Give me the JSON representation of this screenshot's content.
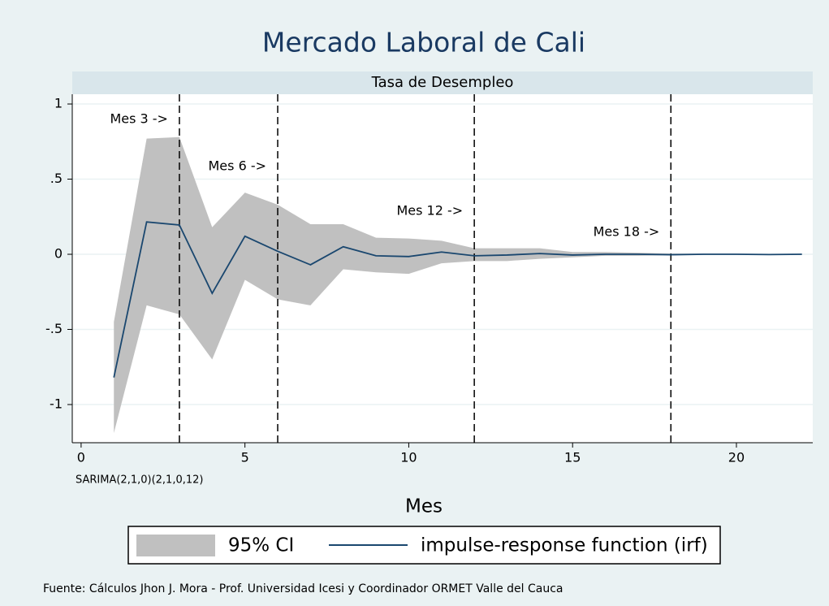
{
  "chart_data": {
    "type": "line",
    "title": "Mercado Laboral de Cali",
    "subtitle": "Tasa de Desempleo",
    "note": "SARIMA(2,1,0)(2,1,0,12)",
    "x_label": "Mes",
    "caption": "Fuente: Cálculos Jhon J. Mora - Prof. Universidad Icesi y Coordinador ORMET Valle del Cauca",
    "x": [
      1,
      2,
      3,
      4,
      5,
      6,
      7,
      8,
      9,
      10,
      11,
      12,
      13,
      14,
      15,
      16,
      17,
      18,
      19,
      20,
      21,
      22
    ],
    "band": {
      "name": "95% CI",
      "color": "#c0c0c0",
      "upper": [
        -0.45,
        0.77,
        0.78,
        0.18,
        0.41,
        0.33,
        0.2,
        0.2,
        0.11,
        0.105,
        0.09,
        0.04,
        0.04,
        0.04,
        0.015,
        0.015,
        0.01,
        0.005,
        0.003,
        0.002,
        0.001,
        0
      ],
      "lower": [
        -1.19,
        -0.34,
        -0.4,
        -0.7,
        -0.17,
        -0.3,
        -0.34,
        -0.1,
        -0.12,
        -0.13,
        -0.06,
        -0.045,
        -0.045,
        -0.03,
        -0.02,
        -0.01,
        -0.01,
        -0.005,
        -0.003,
        -0.002,
        -0.001,
        0
      ]
    },
    "series": [
      {
        "name": "impulse-response function (irf)",
        "color": "#1a476f",
        "values": [
          -0.82,
          0.215,
          0.195,
          -0.26,
          0.12,
          0.02,
          -0.07,
          0.05,
          -0.01,
          -0.015,
          0.015,
          -0.01,
          -0.005,
          0.005,
          -0.005,
          0,
          0,
          -0.003,
          0,
          0,
          -0.002,
          0
        ]
      }
    ],
    "vlines": [
      3,
      6,
      12,
      18
    ],
    "annotations": [
      "Mes 3 ->",
      "Mes 6 ->",
      "Mes 12 ->",
      "Mes 18 ->"
    ],
    "xlim": [
      -0.27,
      22.33
    ],
    "ylim": [
      -1.254,
      1.065
    ],
    "xticks": [
      0,
      5,
      10,
      15,
      20
    ],
    "yticks": [
      1,
      {
        "value": 0.5,
        "label": ".5"
      },
      0,
      {
        "value": -0.5,
        "label": "-.5"
      },
      -1
    ],
    "grid": true
  }
}
